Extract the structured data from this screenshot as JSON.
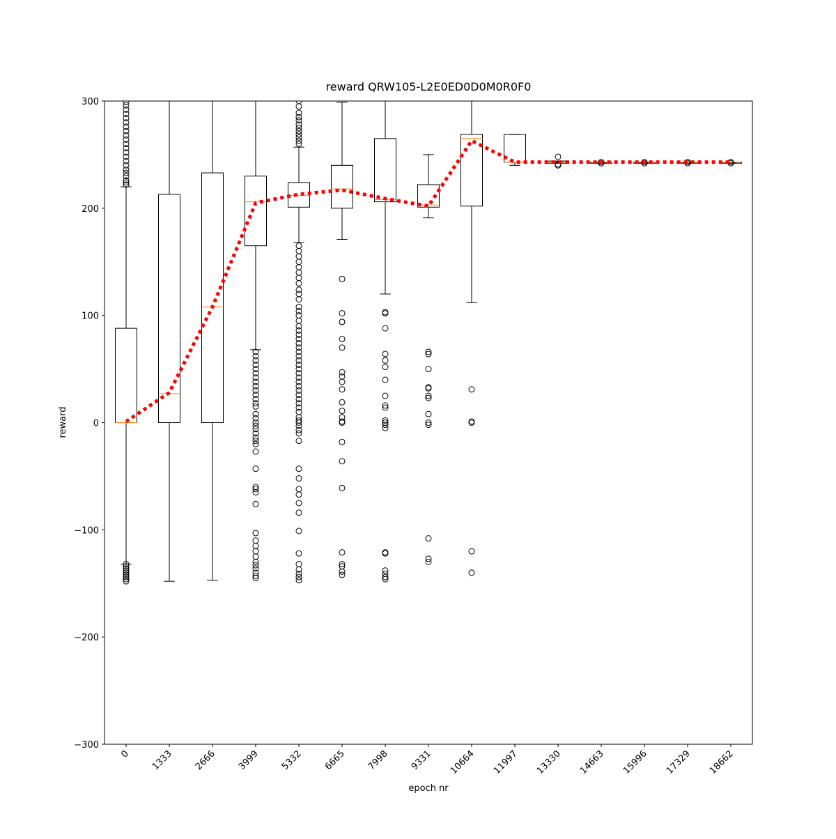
{
  "chart_data": {
    "type": "box",
    "title": "reward QRW105-L2E0ED0D0M0R0F0",
    "x_label": "epoch nr",
    "y_label": "reward",
    "categories": [
      "0",
      "1333",
      "2666",
      "3999",
      "5332",
      "6665",
      "7998",
      "9331",
      "10664",
      "11997",
      "13330",
      "14663",
      "15996",
      "17329",
      "18662"
    ],
    "box_color": "#000000",
    "median_color": "#ff7f0e",
    "boxes": [
      {
        "whislo": -132,
        "q1": 0,
        "med": 0,
        "q3": 88,
        "whishi": 220,
        "fliers": [
          222,
          224,
          226,
          230,
          233,
          236,
          240,
          244,
          248,
          252,
          256,
          260,
          264,
          268,
          272,
          276,
          280,
          284,
          288,
          292,
          296,
          299,
          -132,
          -134,
          -136,
          -138,
          -140,
          -142,
          -144,
          -146,
          -148
        ]
      },
      {
        "whislo": -148,
        "q1": 0,
        "med": 27,
        "q3": 213,
        "whishi": 300,
        "fliers": []
      },
      {
        "whislo": -147,
        "q1": 0,
        "med": 108,
        "q3": 233,
        "whishi": 300,
        "fliers": []
      },
      {
        "whislo": 68,
        "q1": 165,
        "med": 206,
        "q3": 230,
        "whishi": 300,
        "fliers": [
          66,
          62,
          58,
          54,
          50,
          46,
          42,
          38,
          34,
          30,
          26,
          22,
          18,
          15,
          8,
          4,
          0,
          -3,
          -6,
          -10,
          -14,
          -17,
          -20,
          -27,
          -43,
          -60,
          -62,
          -65,
          -76,
          -103,
          -110,
          -115,
          -120,
          -125,
          -130,
          -133,
          -136,
          -140,
          -143,
          -145
        ]
      },
      {
        "whislo": 168,
        "q1": 201,
        "med": 212,
        "q3": 224,
        "whishi": 257,
        "fliers": [
          260,
          263,
          266,
          269,
          272,
          275,
          278,
          282,
          285,
          289,
          295,
          300,
          165,
          160,
          155,
          150,
          145,
          140,
          135,
          130,
          124,
          120,
          115,
          108,
          104,
          100,
          95,
          90,
          86,
          82,
          78,
          74,
          70,
          66,
          62,
          58,
          54,
          50,
          46,
          42,
          38,
          34,
          30,
          26,
          22,
          18,
          14,
          10,
          5,
          2,
          0,
          -3,
          -7,
          -10,
          -17,
          -43,
          -52,
          -62,
          -67,
          -75,
          -84,
          -101,
          -122,
          -132,
          -137,
          -141,
          -144,
          -147
        ]
      },
      {
        "whislo": 171,
        "q1": 200,
        "med": 218,
        "q3": 240,
        "whishi": 299,
        "fliers": [
          134,
          102,
          94,
          94,
          78,
          70,
          47,
          43,
          38,
          31,
          19,
          11,
          5,
          1,
          0,
          -18,
          -36,
          -61,
          -121,
          -132,
          -134,
          -139,
          -142
        ]
      },
      {
        "whislo": 120,
        "q1": 206,
        "med": 208,
        "q3": 265,
        "whishi": 300,
        "fliers": [
          103,
          102,
          88,
          64,
          58,
          52,
          40,
          25,
          16,
          14,
          2,
          0,
          -2,
          -5,
          -121,
          -122,
          -138,
          -141,
          -144,
          -146
        ]
      },
      {
        "whislo": 191,
        "q1": 201,
        "med": 203,
        "q3": 222,
        "whishi": 250,
        "fliers": [
          66,
          64,
          50,
          33,
          32,
          25,
          23,
          8,
          0,
          -2,
          -108,
          -127,
          -130
        ]
      },
      {
        "whislo": 112,
        "q1": 202,
        "med": 265,
        "q3": 269,
        "whishi": 300,
        "fliers": [
          31,
          1,
          0,
          -120,
          -140
        ]
      },
      {
        "whislo": 240,
        "q1": 243,
        "med": 243,
        "q3": 269,
        "whishi": 269,
        "fliers": []
      },
      {
        "whislo": 242,
        "q1": 242,
        "med": 243,
        "q3": 244,
        "whishi": 244,
        "fliers": [
          248,
          241,
          240
        ]
      },
      {
        "whislo": 242,
        "q1": 242,
        "med": 243,
        "q3": 243,
        "whishi": 243,
        "fliers": [
          242,
          243
        ]
      },
      {
        "whislo": 242,
        "q1": 242,
        "med": 243,
        "q3": 243,
        "whishi": 243,
        "fliers": [
          242,
          243
        ]
      },
      {
        "whislo": 242,
        "q1": 242,
        "med": 243,
        "q3": 243,
        "whishi": 243,
        "fliers": [
          242,
          243
        ]
      },
      {
        "whislo": 242,
        "q1": 242,
        "med": 243,
        "q3": 243,
        "whishi": 243,
        "fliers": [
          242,
          243
        ]
      }
    ],
    "mean_line": {
      "color": "#ff0000",
      "values": [
        1,
        28,
        108,
        205,
        213,
        217,
        209,
        202,
        263,
        243,
        243,
        243,
        243,
        243,
        243
      ]
    },
    "ylim": [
      -300,
      300
    ],
    "yticks": [
      {
        "value": -300,
        "label": "−300"
      },
      {
        "value": -200,
        "label": "−200"
      },
      {
        "value": -100,
        "label": "−100"
      },
      0,
      100,
      200,
      300
    ]
  }
}
